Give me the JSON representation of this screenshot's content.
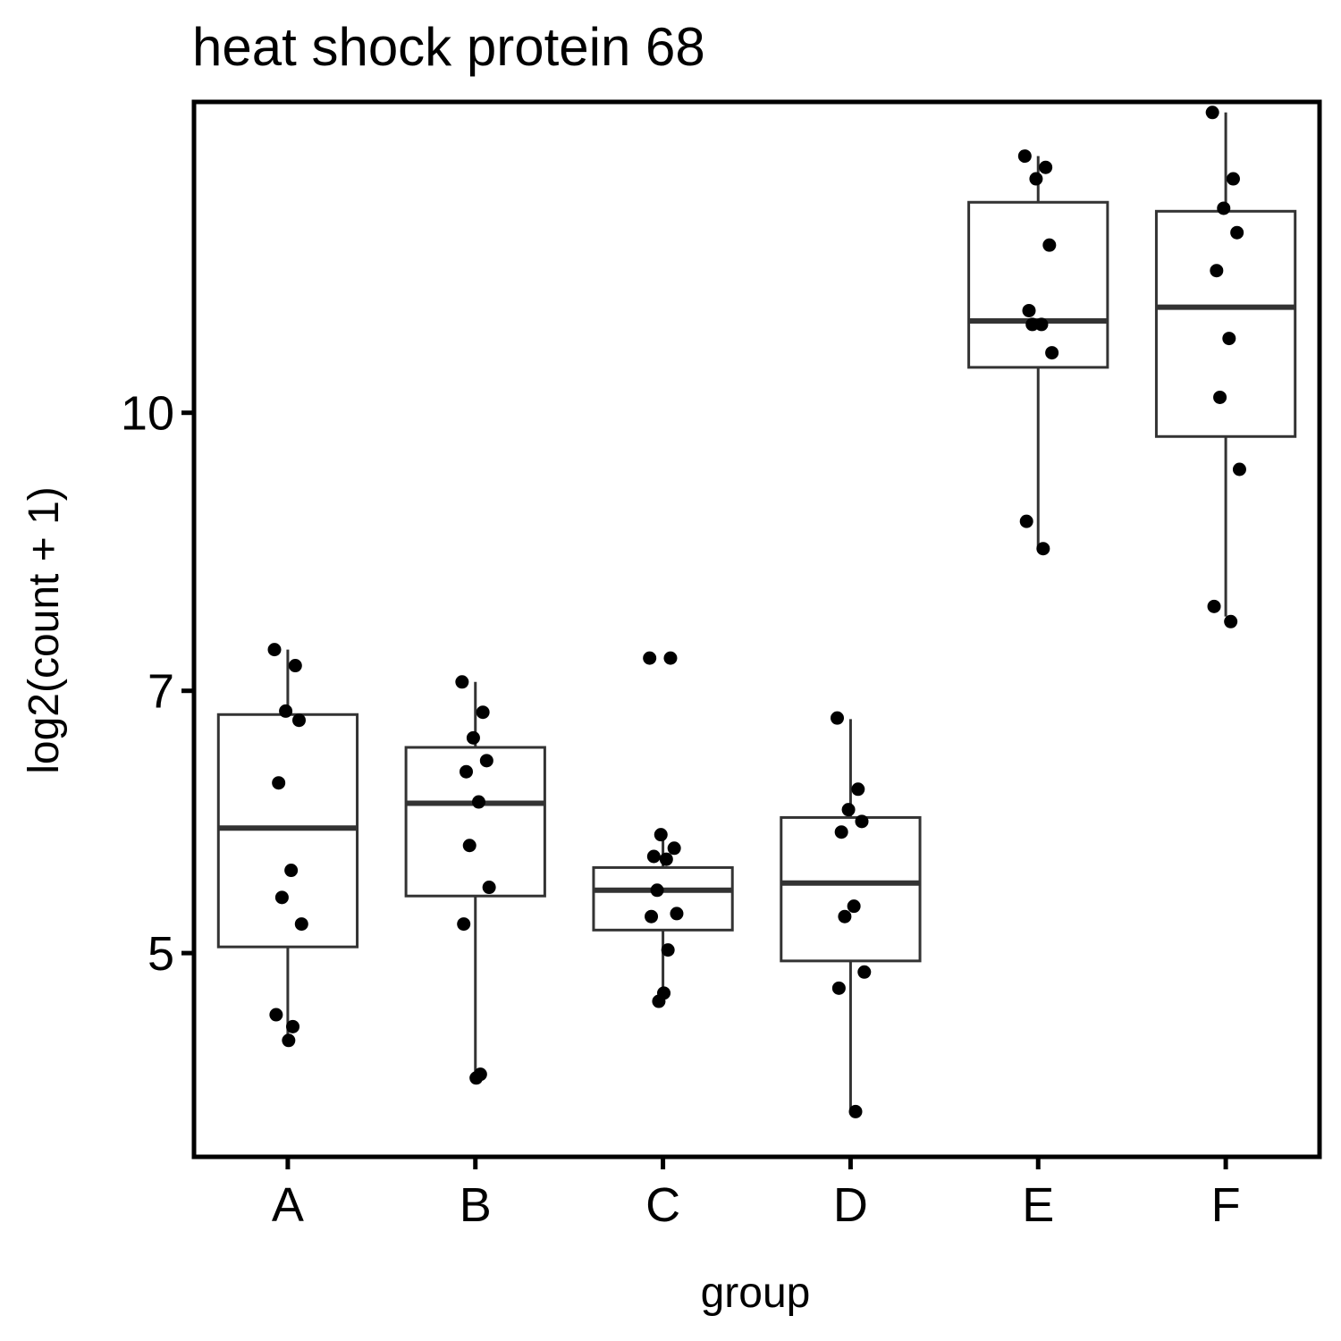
{
  "chart_data": {
    "type": "box",
    "title": "heat shock protein 68",
    "xlabel": "group",
    "ylabel": "log2(count + 1)",
    "log_scale_y": true,
    "ylim": [
      3.85,
      14.9
    ],
    "yticks": [
      5,
      7,
      10
    ],
    "categories": [
      "A",
      "B",
      "C",
      "D",
      "E",
      "F"
    ],
    "grid": false,
    "legend": "none",
    "colors": {
      "box_stroke": "#333333",
      "point": "#000000",
      "frame": "#000000"
    },
    "boxes": [
      {
        "group": "A",
        "whisker_low": 4.47,
        "q1": 5.04,
        "median": 5.87,
        "q3": 6.79,
        "whisker_high": 7.38
      },
      {
        "group": "B",
        "whisker_low": 4.26,
        "q1": 5.38,
        "median": 6.06,
        "q3": 6.51,
        "whisker_high": 7.08
      },
      {
        "group": "C",
        "whisker_low": 4.7,
        "q1": 5.15,
        "median": 5.42,
        "q3": 5.58,
        "whisker_high": 5.82
      },
      {
        "group": "D",
        "whisker_low": 4.08,
        "q1": 4.95,
        "median": 5.47,
        "q3": 5.95,
        "whisker_high": 6.75
      },
      {
        "group": "E",
        "whisker_low": 8.4,
        "q1": 10.6,
        "median": 11.25,
        "q3": 13.1,
        "whisker_high": 13.9
      },
      {
        "group": "F",
        "whisker_low": 7.7,
        "q1": 9.7,
        "median": 11.45,
        "q3": 12.95,
        "whisker_high": 14.7
      }
    ],
    "points": [
      {
        "group": "A",
        "values": [
          7.38,
          7.23,
          6.82,
          6.74,
          6.22,
          5.56,
          5.37,
          5.19,
          4.62,
          4.55,
          4.47
        ]
      },
      {
        "group": "B",
        "values": [
          7.08,
          6.81,
          6.59,
          6.4,
          6.31,
          6.07,
          5.74,
          5.44,
          5.19,
          4.28,
          4.26
        ]
      },
      {
        "group": "C",
        "values": [
          7.3,
          7.3,
          5.82,
          5.72,
          5.66,
          5.64,
          5.42,
          5.26,
          5.24,
          5.02,
          4.75,
          4.7
        ]
      },
      {
        "group": "D",
        "values": [
          6.76,
          6.17,
          6.01,
          5.92,
          5.84,
          5.31,
          5.24,
          4.88,
          4.78,
          4.08
        ]
      },
      {
        "group": "E",
        "values": [
          13.9,
          13.7,
          13.5,
          12.4,
          11.4,
          11.2,
          11.2,
          10.8,
          8.7,
          8.4
        ]
      },
      {
        "group": "F",
        "values": [
          14.7,
          13.5,
          13.0,
          12.6,
          12.0,
          11.0,
          10.2,
          9.3,
          7.8,
          7.65
        ]
      }
    ]
  }
}
